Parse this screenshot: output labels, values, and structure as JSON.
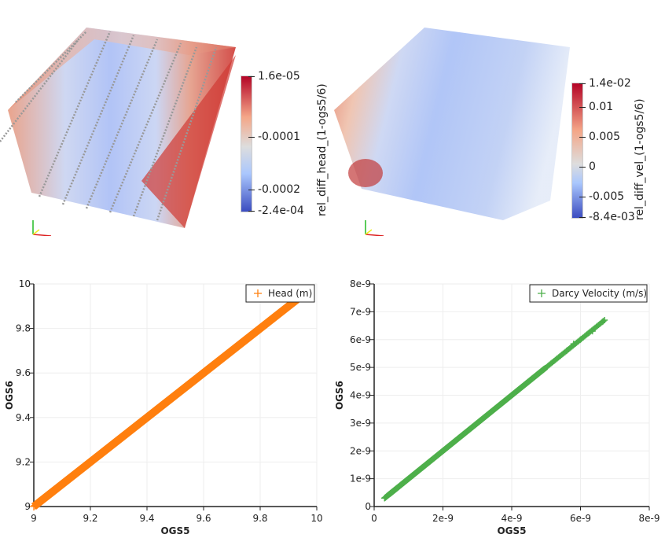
{
  "render_left": {
    "colorbar": {
      "title": "rel_diff_head_(1-ogs5/6)",
      "min": -0.00024,
      "max": 1.6e-05,
      "labels": [
        {
          "text": "1.6e-05",
          "value": 1.6e-05
        },
        {
          "text": "-0.0001",
          "value": -0.0001
        },
        {
          "text": "-0.0002",
          "value": -0.0002
        },
        {
          "text": "-2.4e-04",
          "value": -0.00024
        }
      ],
      "colormap": [
        "#3b4cc0",
        "#aac7fd",
        "#dddddd",
        "#f4a688",
        "#b40426"
      ]
    }
  },
  "render_right": {
    "colorbar": {
      "title": "rel_diff_vel_(1-ogs5/6)",
      "min": -0.0084,
      "max": 0.014,
      "labels": [
        {
          "text": "1.4e-02",
          "value": 0.014
        },
        {
          "text": "0.01",
          "value": 0.01
        },
        {
          "text": "0.005",
          "value": 0.005
        },
        {
          "text": "0",
          "value": 0
        },
        {
          "text": "-0.005",
          "value": -0.005
        },
        {
          "text": "-8.4e-03",
          "value": -0.0084
        }
      ],
      "colormap": [
        "#3b4cc0",
        "#aac7fd",
        "#dddddd",
        "#f4a688",
        "#b40426"
      ]
    }
  },
  "chart_data": [
    {
      "type": "scatter",
      "xlabel": "OGS5",
      "ylabel": "OGS6",
      "xlim": [
        9,
        10
      ],
      "ylim": [
        9,
        10
      ],
      "xticks": [
        "9",
        "9.2",
        "9.4",
        "9.6",
        "9.8",
        "10"
      ],
      "xtick_values": [
        9,
        9.2,
        9.4,
        9.6,
        9.8,
        10
      ],
      "yticks": [
        "9",
        "9.2",
        "9.4",
        "9.6",
        "9.8",
        "10"
      ],
      "ytick_values": [
        9,
        9.2,
        9.4,
        9.6,
        9.8,
        10
      ],
      "grid": true,
      "legend": "top-right",
      "marker": "plus",
      "series": [
        {
          "name": "Head (m)",
          "color": "#ff7f0e",
          "x_range": [
            9,
            9.93
          ],
          "relation": "y = x"
        }
      ]
    },
    {
      "type": "scatter",
      "xlabel": "OGS5",
      "ylabel": "OGS6",
      "xlim": [
        0,
        8e-09
      ],
      "ylim": [
        0,
        8e-09
      ],
      "xticks": [
        "0",
        "2e-9",
        "4e-9",
        "6e-9",
        "8e-9"
      ],
      "xtick_values": [
        0,
        2e-09,
        4e-09,
        6e-09,
        8e-09
      ],
      "yticks": [
        "0",
        "1e-9",
        "2e-9",
        "3e-9",
        "4e-9",
        "5e-9",
        "6e-9",
        "7e-9",
        "8e-9"
      ],
      "ytick_values": [
        0,
        1e-09,
        2e-09,
        3e-09,
        4e-09,
        5e-09,
        6e-09,
        7e-09,
        8e-09
      ],
      "grid": true,
      "legend": "top-right",
      "marker": "plus",
      "series": [
        {
          "name": "Darcy Velocity (m/s)",
          "color": "#4daf4a",
          "x_range": [
            3e-10,
            6.7e-09
          ],
          "relation": "y ≈ x",
          "sparse_points": [
            [
              5.6e-09,
              5.6e-09
            ],
            [
              5.8e-09,
              5.85e-09
            ],
            [
              6e-09,
              6e-09
            ],
            [
              6.25e-09,
              6.25e-09
            ],
            [
              6.35e-09,
              6.3e-09
            ],
            [
              6.65e-09,
              6.65e-09
            ],
            [
              6.7e-09,
              6.7e-09
            ]
          ]
        }
      ]
    }
  ]
}
